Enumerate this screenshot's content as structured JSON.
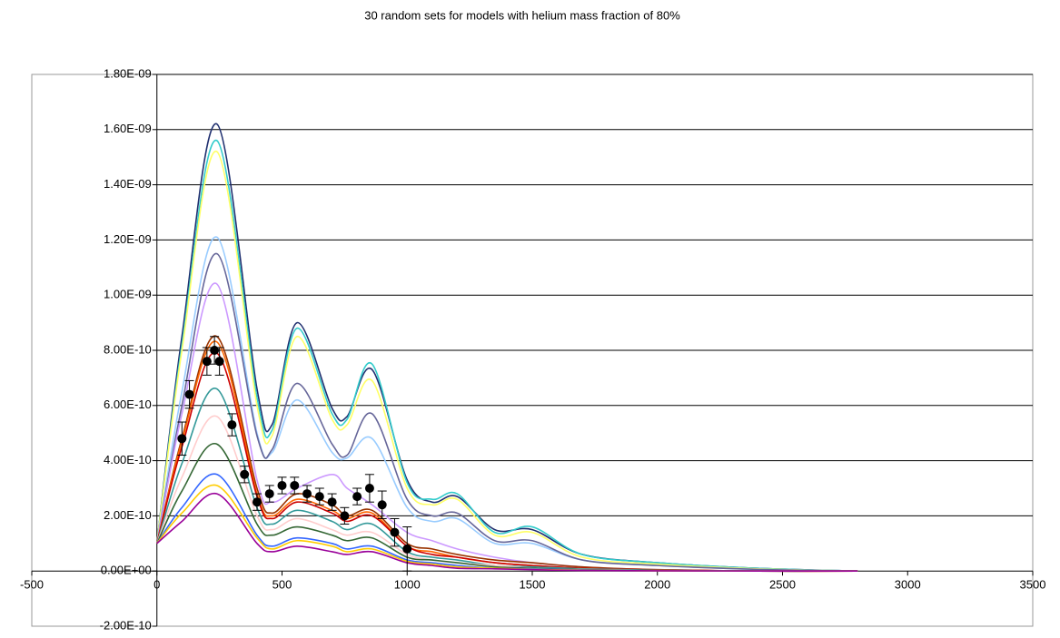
{
  "chart_data": {
    "type": "line",
    "title": "30 random sets for models with helium mass fraction of 80%",
    "x": [
      0,
      100,
      240,
      400,
      460,
      560,
      700,
      760,
      860,
      1000,
      1100,
      1200,
      1350,
      1500,
      1700,
      2000,
      2400,
      2800
    ],
    "series": [
      {
        "color": "#1f2f6f",
        "values": [
          1e-10,
          8.5e-10,
          1.62e-09,
          6.6e-10,
          5.3e-10,
          9e-10,
          5.9e-10,
          5.6e-10,
          7.3e-10,
          3.3e-10,
          2.5e-10,
          2.7e-10,
          1.5e-10,
          1.5e-10,
          6e-11,
          3e-11,
          1e-11,
          0
        ]
      },
      {
        "color": "#33cccc",
        "values": [
          1e-10,
          8.2e-10,
          1.56e-09,
          6.3e-10,
          5.1e-10,
          8.8e-10,
          5.7e-10,
          5.5e-10,
          7.5e-10,
          3.2e-10,
          2.6e-10,
          2.8e-10,
          1.4e-10,
          1.6e-10,
          6e-11,
          3e-11,
          1e-11,
          0
        ]
      },
      {
        "color": "#ffff66",
        "values": [
          1e-10,
          8e-10,
          1.52e-09,
          6e-10,
          4.9e-10,
          8.5e-10,
          5.5e-10,
          5.3e-10,
          6.9e-10,
          3e-10,
          2.4e-10,
          2.6e-10,
          1.3e-10,
          1.4e-10,
          5e-11,
          2.5e-11,
          8e-12,
          0
        ]
      },
      {
        "color": "#99ccff",
        "values": [
          1e-10,
          6.5e-10,
          1.21e-09,
          5e-10,
          4.3e-10,
          6.2e-10,
          4.3e-10,
          4.1e-10,
          4.8e-10,
          2.3e-10,
          1.8e-10,
          1.9e-10,
          1e-10,
          1e-10,
          4e-11,
          2e-11,
          6e-12,
          0
        ]
      },
      {
        "color": "#666699",
        "values": [
          1e-10,
          6e-10,
          1.15e-09,
          4.9e-10,
          4.4e-10,
          6.8e-10,
          4.6e-10,
          4.2e-10,
          5.7e-10,
          2.6e-10,
          2e-10,
          2.1e-10,
          1.1e-10,
          1.1e-10,
          4e-11,
          2e-11,
          6e-12,
          0
        ]
      },
      {
        "color": "#cc99ff",
        "values": [
          1e-10,
          5.7e-10,
          1.04e-09,
          3.3e-10,
          2.5e-10,
          3e-10,
          3.5e-10,
          3e-10,
          2.4e-10,
          1.4e-10,
          1.1e-10,
          8e-11,
          5e-11,
          3e-11,
          1.5e-11,
          5e-12,
          0,
          0
        ]
      },
      {
        "color": "#993300",
        "values": [
          1e-10,
          4.8e-10,
          8.5e-10,
          3e-10,
          2.1e-10,
          2.8e-10,
          2.4e-10,
          2e-10,
          2.2e-10,
          1e-10,
          8e-11,
          6e-11,
          4e-11,
          3e-11,
          1.5e-11,
          5e-12,
          0,
          0
        ]
      },
      {
        "color": "#ff6600",
        "values": [
          1e-10,
          4.7e-10,
          8.3e-10,
          2.8e-10,
          2e-10,
          2.6e-10,
          2.2e-10,
          1.9e-10,
          2.1e-10,
          9e-11,
          7e-11,
          5e-11,
          3e-11,
          2e-11,
          1e-11,
          4e-12,
          0,
          0
        ]
      },
      {
        "color": "#cc0000",
        "values": [
          1e-10,
          4.5e-10,
          7.9e-10,
          2.7e-10,
          1.9e-10,
          2.5e-10,
          2.1e-10,
          1.8e-10,
          2e-10,
          9e-11,
          6e-11,
          5e-11,
          3e-11,
          2e-11,
          1e-11,
          4e-12,
          0,
          0
        ]
      },
      {
        "color": "#339999",
        "values": [
          1e-10,
          3.9e-10,
          6.6e-10,
          2.3e-10,
          1.7e-10,
          2.2e-10,
          1.8e-10,
          1.5e-10,
          1.7e-10,
          7e-11,
          5e-11,
          4e-11,
          2e-11,
          1.5e-11,
          8e-12,
          3e-12,
          0,
          0
        ]
      },
      {
        "color": "#ffcccc",
        "values": [
          1e-10,
          3.4e-10,
          5.6e-10,
          2e-10,
          1.5e-10,
          1.9e-10,
          1.5e-10,
          1.3e-10,
          1.4e-10,
          6e-11,
          4e-11,
          3e-11,
          2e-11,
          1e-11,
          6e-12,
          2e-12,
          0,
          0
        ]
      },
      {
        "color": "#336633",
        "values": [
          1e-10,
          2.9e-10,
          4.6e-10,
          1.7e-10,
          1.3e-10,
          1.6e-10,
          1.3e-10,
          1.1e-10,
          1.2e-10,
          5e-11,
          4e-11,
          3e-11,
          1.5e-11,
          1e-11,
          5e-12,
          2e-12,
          0,
          0
        ]
      },
      {
        "color": "#3366ff",
        "values": [
          1e-10,
          2.3e-10,
          3.5e-10,
          1.3e-10,
          9e-11,
          1.2e-10,
          1e-10,
          8e-11,
          9e-11,
          4e-11,
          3e-11,
          2e-11,
          1e-11,
          8e-12,
          4e-12,
          1e-12,
          0,
          0
        ]
      },
      {
        "color": "#ffcc00",
        "values": [
          1e-10,
          2.1e-10,
          3.1e-10,
          1.2e-10,
          8e-11,
          1.1e-10,
          9e-11,
          7e-11,
          8e-11,
          3.5e-11,
          2.5e-11,
          1.5e-11,
          1e-11,
          6e-12,
          3e-12,
          1e-12,
          0,
          0
        ]
      },
      {
        "color": "#990099",
        "values": [
          1e-10,
          1.8e-10,
          2.8e-10,
          1e-10,
          7e-11,
          9e-11,
          7e-11,
          6e-11,
          7e-11,
          3e-11,
          2e-11,
          1e-11,
          8e-12,
          5e-12,
          2e-12,
          1e-12,
          0,
          0
        ]
      }
    ],
    "points": {
      "color": "#000000",
      "x": [
        100,
        130,
        200,
        230,
        250,
        300,
        350,
        400,
        450,
        500,
        550,
        600,
        650,
        700,
        750,
        800,
        850,
        900,
        950,
        1000
      ],
      "values": [
        4.8e-10,
        6.4e-10,
        7.6e-10,
        8e-10,
        7.6e-10,
        5.3e-10,
        3.5e-10,
        2.5e-10,
        2.8e-10,
        3.1e-10,
        3.1e-10,
        2.8e-10,
        2.7e-10,
        2.5e-10,
        2e-10,
        2.7e-10,
        3e-10,
        2.4e-10,
        1.4e-10,
        8e-11
      ],
      "errors": [
        6e-11,
        5e-11,
        5e-11,
        5e-11,
        5e-11,
        4e-11,
        3e-11,
        3e-11,
        3e-11,
        3e-11,
        3e-11,
        3e-11,
        3e-11,
        3e-11,
        3e-11,
        3e-11,
        5e-11,
        5e-11,
        5e-11,
        8e-11
      ]
    },
    "xlim": [
      -500,
      3500
    ],
    "xticks": [
      -500,
      0,
      500,
      1000,
      1500,
      2000,
      2500,
      3000,
      3500
    ],
    "ylim": [
      -2e-10,
      1.8e-09
    ],
    "yticks": [
      {
        "value": -2e-10,
        "label": "-2.00E-10"
      },
      {
        "value": 0,
        "label": "0.00E+00"
      },
      {
        "value": 2e-10,
        "label": "2.00E-10"
      },
      {
        "value": 4e-10,
        "label": "4.00E-10"
      },
      {
        "value": 6e-10,
        "label": "6.00E-10"
      },
      {
        "value": 8e-10,
        "label": "8.00E-10"
      },
      {
        "value": 1e-09,
        "label": "1.00E-09"
      },
      {
        "value": 1.2e-09,
        "label": "1.20E-09"
      },
      {
        "value": 1.4e-09,
        "label": "1.40E-09"
      },
      {
        "value": 1.6e-09,
        "label": "1.60E-09"
      },
      {
        "value": 1.8e-09,
        "label": "1.80E-09"
      }
    ],
    "grid": true
  }
}
